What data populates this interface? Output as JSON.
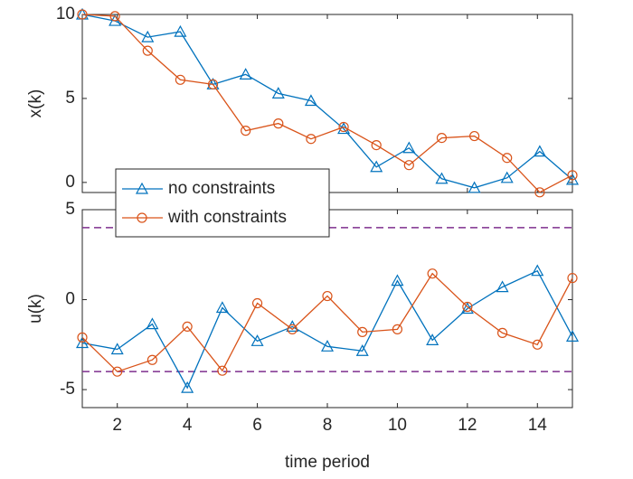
{
  "chart_data": [
    {
      "type": "line",
      "ylabel": "x(k)",
      "x": [
        1,
        1.933,
        2.867,
        3.8,
        4.733,
        5.667,
        6.6,
        7.533,
        8.467,
        9.4,
        10.333,
        11.267,
        12.2,
        13.133,
        14.067,
        15
      ],
      "series": [
        {
          "name": "no constraints",
          "color": "#0072bd",
          "marker": "triangle",
          "values": [
            10,
            9.62,
            8.65,
            8.97,
            5.84,
            6.43,
            5.3,
            4.86,
            3.19,
            0.92,
            2.05,
            0.22,
            -0.32,
            0.27,
            1.84,
            0.16
          ]
        },
        {
          "name": "with constraints",
          "color": "#d95319",
          "marker": "circle",
          "values": [
            10,
            9.9,
            7.84,
            6.11,
            5.84,
            3.08,
            3.51,
            2.59,
            3.3,
            2.22,
            1.03,
            2.65,
            2.76,
            1.46,
            -0.59,
            0.43
          ]
        }
      ],
      "xlim": [
        1,
        15
      ],
      "xticks": [
        2,
        4,
        6,
        8,
        10,
        12,
        14
      ],
      "show_xtick_labels": false,
      "ylim": [
        -0.6,
        10
      ],
      "yticks": [
        0,
        5,
        10
      ],
      "legend": "bottom-left"
    },
    {
      "type": "line",
      "ylabel": "u(k)",
      "xlabel": "time period",
      "x": [
        1,
        2,
        3,
        4,
        5,
        6,
        7,
        8,
        9,
        10,
        11,
        12,
        13,
        14,
        15
      ],
      "series": [
        {
          "name": "no constraints",
          "color": "#0072bd",
          "marker": "triangle",
          "values": [
            -2.41,
            -2.76,
            -1.36,
            -4.9,
            -0.45,
            -2.3,
            -1.5,
            -2.6,
            -2.85,
            1.05,
            -2.25,
            -0.5,
            0.7,
            1.6,
            -2.05
          ]
        },
        {
          "name": "with constraints",
          "color": "#d95319",
          "marker": "circle",
          "values": [
            -2.1,
            -4,
            -3.35,
            -1.5,
            -3.95,
            -0.2,
            -1.65,
            0.2,
            -1.8,
            -1.65,
            1.45,
            -0.4,
            -1.85,
            -2.5,
            1.2
          ]
        }
      ],
      "hlines": [
        4,
        -4
      ],
      "hline_color": "#7e2f8e",
      "xlim": [
        1,
        15
      ],
      "xticks": [
        2,
        4,
        6,
        8,
        10,
        12,
        14
      ],
      "show_xtick_labels": true,
      "ylim": [
        -6,
        5
      ],
      "yticks": [
        -5,
        0,
        5
      ]
    }
  ]
}
